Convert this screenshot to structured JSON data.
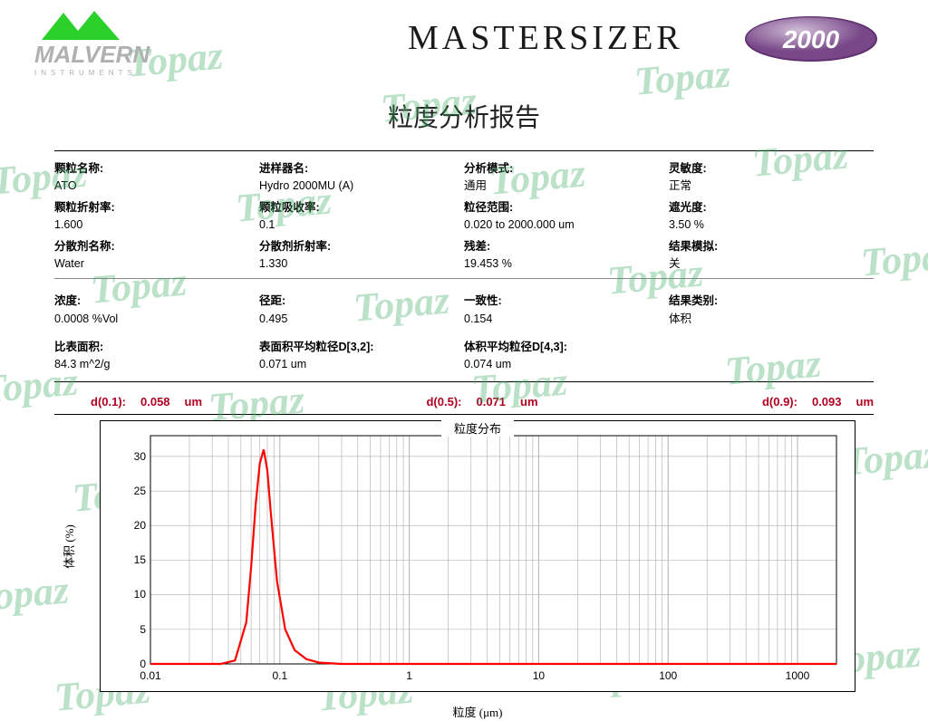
{
  "header": {
    "brand": "MALVERN",
    "brand_sub": "INSTRUMENTS",
    "product": "MASTERSIZER",
    "badge": "2000",
    "badge_bg": "#7a3a8a",
    "mountain_color": "#2bd02b"
  },
  "title": "粒度分析报告",
  "watermark_text": "Topaz",
  "watermark_color": "rgba(60,170,100,0.35)",
  "params": {
    "row1": [
      {
        "label": "颗粒名称:",
        "value": "ATO"
      },
      {
        "label": "进样器名:",
        "value": "Hydro 2000MU (A)"
      },
      {
        "label": "分析模式:",
        "value": "通用"
      },
      {
        "label": "灵敏度:",
        "value": "正常"
      }
    ],
    "row2": [
      {
        "label": "颗粒折射率:",
        "value": "1.600"
      },
      {
        "label": "颗粒吸收率:",
        "value": "0.1"
      },
      {
        "label": "粒径范围:",
        "value": "0.020    to    2000.000   um"
      },
      {
        "label": "遮光度:",
        "value": "3.50      %"
      }
    ],
    "row3": [
      {
        "label": "分散剂名称:",
        "value": "Water"
      },
      {
        "label": "分散剂折射率:",
        "value": "1.330"
      },
      {
        "label": "残差:",
        "value": "19.453      %"
      },
      {
        "label": "结果模拟:",
        "value": "关"
      }
    ],
    "row4": [
      {
        "label": "浓度:",
        "value": "0.0008      %Vol"
      },
      {
        "label": "径距:",
        "value": "0.495"
      },
      {
        "label": "一致性:",
        "value": "0.154"
      },
      {
        "label": "结果类别:",
        "value": "体积"
      }
    ],
    "row5": [
      {
        "label": "比表面积:",
        "value": "84.3        m^2/g"
      },
      {
        "label": "表面积平均粒径D[3,2]:",
        "value": "0.071      um"
      },
      {
        "label": "体积平均粒径D[4,3]:",
        "value": "0.074      um"
      },
      {
        "label": "",
        "value": ""
      }
    ]
  },
  "percentiles": {
    "d01_label": "d(0.1):",
    "d01_val": "0.058",
    "d01_unit": "um",
    "d05_label": "d(0.5):",
    "d05_val": "0.071",
    "d05_unit": "um",
    "d09_label": "d(0.9):",
    "d09_val": "0.093",
    "d09_unit": "um",
    "color": "#b00020"
  },
  "chart": {
    "type": "line",
    "title": "粒度分布",
    "ylabel": "体积 (%)",
    "xlabel": "粒度  (μm)",
    "xscale": "log",
    "xlim": [
      0.01,
      2000
    ],
    "ylim": [
      0,
      33
    ],
    "xticks": [
      0.01,
      0.1,
      1,
      10,
      100,
      1000
    ],
    "xtick_labels": [
      "0.01",
      "0.1",
      "1",
      "10",
      "100",
      "1000"
    ],
    "yticks": [
      0,
      5,
      10,
      15,
      20,
      25,
      30
    ],
    "grid_color": "#b8b8b8",
    "line_color": "#ff0000",
    "line_width": 2.2,
    "background_color": "#ffffff",
    "x": [
      0.01,
      0.035,
      0.045,
      0.055,
      0.06,
      0.065,
      0.07,
      0.075,
      0.08,
      0.085,
      0.095,
      0.11,
      0.13,
      0.16,
      0.2,
      0.3,
      2000
    ],
    "y": [
      0,
      0,
      0.5,
      6,
      14,
      23,
      29,
      31,
      28,
      22,
      12,
      5,
      2,
      0.7,
      0.2,
      0,
      0
    ]
  }
}
